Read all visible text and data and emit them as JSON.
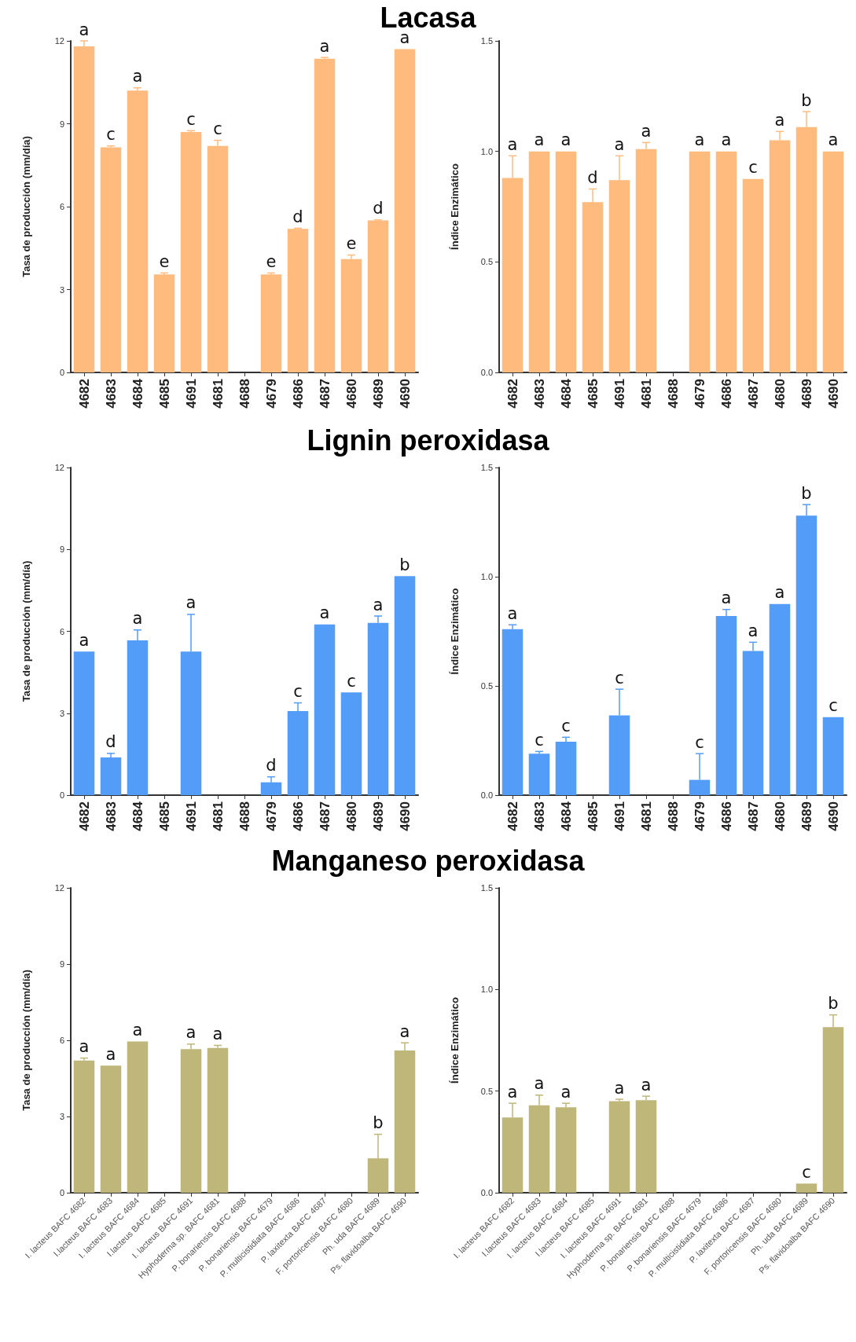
{
  "chart_data": [
    {
      "type": "bar",
      "title": "Lacasa",
      "ylabel": "Tasa de producción (mm/día)",
      "categories": [
        "4682",
        "4683",
        "4684",
        "4685",
        "4691",
        "4681",
        "4688",
        "4679",
        "4686",
        "4687",
        "4680",
        "4689",
        "4690"
      ],
      "color": "#ffbb7d",
      "values": [
        11.8,
        8.15,
        10.2,
        3.55,
        8.7,
        8.2,
        null,
        3.55,
        5.2,
        11.35,
        4.1,
        5.5,
        11.7
      ],
      "errors": [
        0.2,
        0.05,
        0.1,
        0.05,
        0.05,
        0.2,
        null,
        0.05,
        0.02,
        0.05,
        0.15,
        0.02,
        null
      ],
      "ylim": [
        0,
        12
      ],
      "yticks": [
        0,
        3,
        6,
        9,
        12
      ],
      "grid": false,
      "annotations": [
        {
          "text": "a",
          "x": "4682",
          "y": 11.8
        },
        {
          "text": "c",
          "x": "4683",
          "y": 8.15
        },
        {
          "text": "a",
          "x": "4684",
          "y": 10.2
        },
        {
          "text": "e",
          "x": "4685",
          "y": 3.55
        },
        {
          "text": "c",
          "x": "4691",
          "y": 8.7
        },
        {
          "text": "c",
          "x": "4681",
          "y": 8.2
        },
        {
          "text": "e",
          "x": "4679",
          "y": 3.55
        },
        {
          "text": "d",
          "x": "4686",
          "y": 5.2
        },
        {
          "text": "a",
          "x": "4687",
          "y": 11.35
        },
        {
          "text": "e",
          "x": "4680",
          "y": 4.1
        },
        {
          "text": "d",
          "x": "4689",
          "y": 5.5
        },
        {
          "text": "a",
          "x": "4690",
          "y": 11.7
        }
      ]
    },
    {
      "type": "bar",
      "ylabel": "Índice Enzimático",
      "categories": [
        "4682",
        "4683",
        "4684",
        "4685",
        "4691",
        "4681",
        "4688",
        "4679",
        "4686",
        "4687",
        "4680",
        "4689",
        "4690"
      ],
      "color": "#ffbb7d",
      "values": [
        0.88,
        1.0,
        1.0,
        0.77,
        0.87,
        1.01,
        null,
        1.0,
        1.0,
        0.875,
        1.05,
        1.11,
        1.0
      ],
      "errors": [
        0.1,
        null,
        null,
        0.06,
        0.11,
        0.03,
        null,
        null,
        null,
        null,
        0.04,
        0.07,
        null
      ],
      "ylim": [
        0,
        1.5
      ],
      "yticks": [
        {
          "value": 0,
          "label": "0.0"
        },
        {
          "value": 0.5,
          "label": "0.5"
        },
        {
          "value": 1,
          "label": "1.0"
        },
        {
          "value": 1.5,
          "label": "1.5"
        }
      ],
      "grid": false,
      "annotations": [
        {
          "text": "a",
          "x": "4682",
          "y": 0.88
        },
        {
          "text": "a",
          "x": "4683",
          "y": 1.0
        },
        {
          "text": "a",
          "x": "4684",
          "y": 1.0
        },
        {
          "text": "d",
          "x": "4685",
          "y": 0.77
        },
        {
          "text": "a",
          "x": "4691",
          "y": 0.87
        },
        {
          "text": "a",
          "x": "4681",
          "y": 1.01
        },
        {
          "text": "a",
          "x": "4679",
          "y": 1.0
        },
        {
          "text": "a",
          "x": "4686",
          "y": 1.0
        },
        {
          "text": "c",
          "x": "4687",
          "y": 0.875
        },
        {
          "text": "a",
          "x": "4680",
          "y": 1.05
        },
        {
          "text": "b",
          "x": "4689",
          "y": 1.11
        },
        {
          "text": "a",
          "x": "4690",
          "y": 1.0
        }
      ]
    },
    {
      "type": "bar",
      "title": "Lignin peroxidasa",
      "ylabel": "Tasa de producción (mm/día)",
      "categories": [
        "4682",
        "4683",
        "4684",
        "4685",
        "4691",
        "4681",
        "4688",
        "4679",
        "4686",
        "4687",
        "4680",
        "4689",
        "4690"
      ],
      "color": "#539cf8",
      "values": [
        5.26,
        1.38,
        5.67,
        null,
        5.26,
        null,
        null,
        0.47,
        3.08,
        6.25,
        3.76,
        6.31,
        8.02
      ],
      "errors": [
        null,
        0.15,
        0.38,
        null,
        1.36,
        null,
        null,
        0.2,
        0.3,
        null,
        null,
        0.25,
        null
      ],
      "ylim": [
        0,
        12
      ],
      "yticks": [
        0,
        3,
        6,
        9,
        12
      ],
      "grid": false,
      "annotations": [
        {
          "text": "a",
          "x": "4682",
          "y": 5.26
        },
        {
          "text": "d",
          "x": "4683",
          "y": 1.38
        },
        {
          "text": "a",
          "x": "4684",
          "y": 5.67
        },
        {
          "text": "a",
          "x": "4691",
          "y": 5.26
        },
        {
          "text": "d",
          "x": "4679",
          "y": 0.47
        },
        {
          "text": "c",
          "x": "4686",
          "y": 3.08
        },
        {
          "text": "a",
          "x": "4687",
          "y": 6.25
        },
        {
          "text": "c",
          "x": "4680",
          "y": 3.76
        },
        {
          "text": "a",
          "x": "4689",
          "y": 6.31
        },
        {
          "text": "b",
          "x": "4690",
          "y": 8.02
        }
      ]
    },
    {
      "type": "bar",
      "ylabel": "Índice Enzimático",
      "categories": [
        "4682",
        "4683",
        "4684",
        "4685",
        "4691",
        "4681",
        "4688",
        "4679",
        "4686",
        "4687",
        "4680",
        "4689",
        "4690"
      ],
      "color": "#539cf8",
      "values": [
        0.76,
        0.19,
        0.245,
        null,
        0.365,
        null,
        null,
        0.07,
        0.82,
        0.66,
        0.875,
        1.28,
        0.357
      ],
      "errors": [
        0.02,
        0.01,
        0.02,
        null,
        0.12,
        null,
        null,
        0.12,
        0.03,
        0.04,
        null,
        0.05,
        null
      ],
      "ylim": [
        0,
        1.5
      ],
      "yticks": [
        {
          "value": 0,
          "label": "0.0"
        },
        {
          "value": 0.5,
          "label": "0.5"
        },
        {
          "value": 1,
          "label": "1.0"
        },
        {
          "value": 1.5,
          "label": "1.5"
        }
      ],
      "grid": false,
      "annotations": [
        {
          "text": "a",
          "x": "4682",
          "y": 0.76
        },
        {
          "text": "c",
          "x": "4683",
          "y": 0.19
        },
        {
          "text": "c",
          "x": "4684",
          "y": 0.245
        },
        {
          "text": "c",
          "x": "4691",
          "y": 0.365
        },
        {
          "text": "c",
          "x": "4679",
          "y": 0.07
        },
        {
          "text": "a",
          "x": "4686",
          "y": 0.82
        },
        {
          "text": "a",
          "x": "4687",
          "y": 0.66
        },
        {
          "text": "a",
          "x": "4680",
          "y": 0.875
        },
        {
          "text": "b",
          "x": "4689",
          "y": 1.28
        },
        {
          "text": "c",
          "x": "4690",
          "y": 0.357
        }
      ]
    },
    {
      "type": "bar",
      "title": "Manganeso peroxidasa",
      "ylabel": "Tasa de producción (mm/día)",
      "categories": [
        "I. lacteus BAFC 4682",
        "I.lacteus BAFC 4683",
        "I. lacteus BAFC 4684",
        "I.lacteus BAFC 4685",
        "I. lacteus BAFC 4691",
        "Hyphoderma sp. BAFC 4681",
        "P. bonariensis BAFC 4688",
        "P. bonariensis BAFC 4679",
        "P. multicistidiata BAFC 4686",
        "P. laxitexta BAFC 4687",
        "F. portoricensis BAFC 4680",
        "Ph. uda BAFC 4689",
        "Ps. flavidoalba BAFC 4690"
      ],
      "color": "#bfb67a",
      "values": [
        5.2,
        5.0,
        5.95,
        null,
        5.65,
        5.7,
        null,
        null,
        null,
        null,
        null,
        1.35,
        5.6
      ],
      "errors": [
        0.1,
        null,
        null,
        null,
        0.2,
        0.1,
        null,
        null,
        null,
        null,
        null,
        0.95,
        0.3
      ],
      "ylim": [
        0,
        12
      ],
      "yticks": [
        0,
        3,
        6,
        9,
        12
      ],
      "grid": false,
      "annotations": [
        {
          "text": "a",
          "x": "I. lacteus BAFC 4682",
          "y": 5.2
        },
        {
          "text": "a",
          "x": "I.lacteus BAFC 4683",
          "y": 5.0
        },
        {
          "text": "a",
          "x": "I. lacteus BAFC 4684",
          "y": 5.95
        },
        {
          "text": "a",
          "x": "I. lacteus BAFC 4691",
          "y": 5.65
        },
        {
          "text": "a",
          "x": "Hyphoderma sp. BAFC 4681",
          "y": 5.7
        },
        {
          "text": "b",
          "x": "Ph. uda BAFC 4689",
          "y": 1.35
        },
        {
          "text": "a",
          "x": "Ps. flavidoalba BAFC 4690",
          "y": 5.6
        }
      ]
    },
    {
      "type": "bar",
      "ylabel": "Índice Enzimático",
      "categories": [
        "I. lacteus BAFC 4682",
        "I.lacteus BAFC 4683",
        "I. lacteus BAFC 4684",
        "I.lacteus BAFC 4685",
        "I. lacteus BAFC 4691",
        "Hyphoderma sp. BAFC 4681",
        "P. bonariensis BAFC 4688",
        "P. bonariensis BAFC 4679",
        "P. multicistidiata BAFC 4686",
        "P. laxitexta BAFC 4687",
        "F. portoricensis BAFC 4680",
        "Ph. uda BAFC 4689",
        "Ps. flavidoalba BAFC 4690"
      ],
      "color": "#bfb67a",
      "values": [
        0.37,
        0.43,
        0.42,
        null,
        0.45,
        0.455,
        null,
        null,
        null,
        null,
        null,
        0.045,
        0.815
      ],
      "errors": [
        0.07,
        0.05,
        0.02,
        null,
        0.01,
        0.02,
        null,
        null,
        null,
        null,
        null,
        null,
        0.06
      ],
      "ylim": [
        0,
        1.5
      ],
      "yticks": [
        {
          "value": 0,
          "label": "0.0"
        },
        {
          "value": 0.5,
          "label": "0.5"
        },
        {
          "value": 1,
          "label": "1.0"
        },
        {
          "value": 1.5,
          "label": "1.5"
        }
      ],
      "grid": false,
      "annotations": [
        {
          "text": "a",
          "x": "I. lacteus BAFC 4682",
          "y": 0.37
        },
        {
          "text": "a",
          "x": "I.lacteus BAFC 4683",
          "y": 0.43
        },
        {
          "text": "a",
          "x": "I. lacteus BAFC 4684",
          "y": 0.42
        },
        {
          "text": "a",
          "x": "I. lacteus BAFC 4691",
          "y": 0.45
        },
        {
          "text": "a",
          "x": "Hyphoderma sp. BAFC 4681",
          "y": 0.455
        },
        {
          "text": "c",
          "x": "Ph. uda BAFC 4689",
          "y": 0.045
        },
        {
          "text": "b",
          "x": "Ps. flavidoalba BAFC 4690",
          "y": 0.815
        }
      ]
    }
  ]
}
